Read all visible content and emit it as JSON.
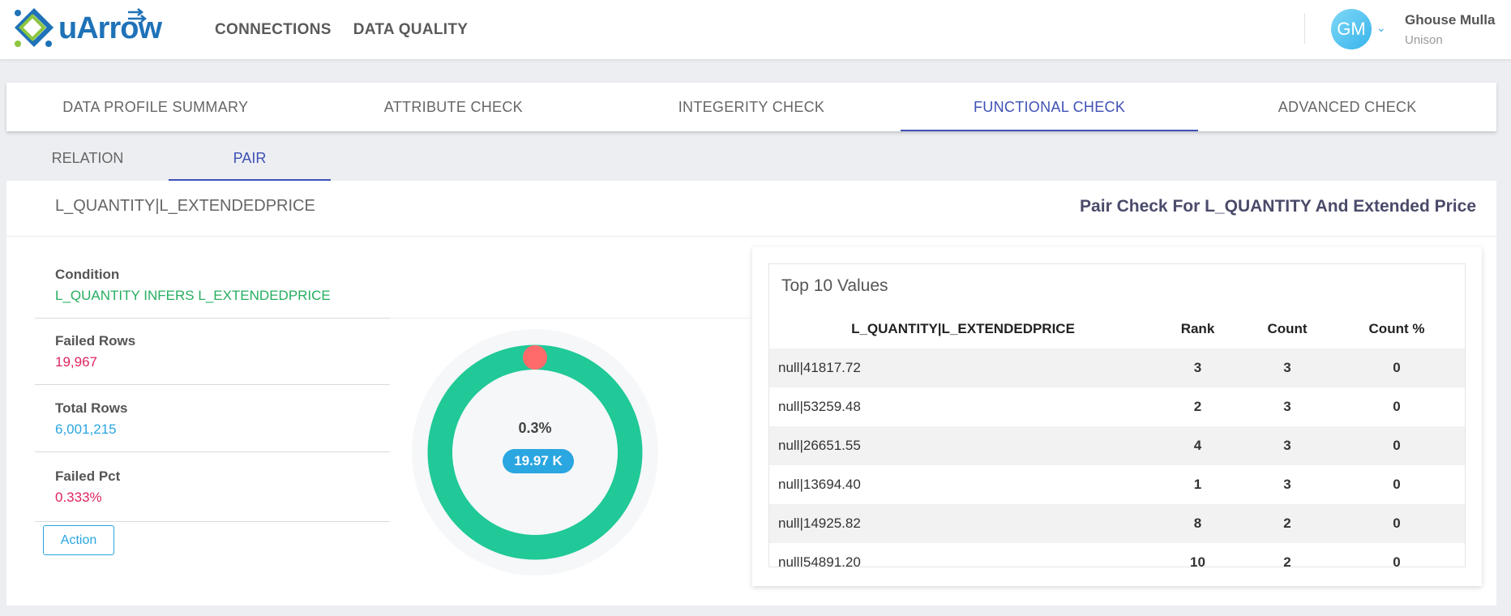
{
  "app": {
    "logo_text": "uArrow",
    "nav": [
      "CONNECTIONS",
      "DATA QUALITY"
    ],
    "user": {
      "initials": "GM",
      "name": "Ghouse Mulla",
      "org": "Unison"
    }
  },
  "tabs": [
    {
      "label": "DATA PROFILE SUMMARY",
      "active": false
    },
    {
      "label": "ATTRIBUTE CHECK",
      "active": false
    },
    {
      "label": "INTEGERITY CHECK",
      "active": false
    },
    {
      "label": "FUNCTIONAL CHECK",
      "active": true
    },
    {
      "label": "ADVANCED CHECK",
      "active": false
    }
  ],
  "subtabs": [
    {
      "label": "RELATION",
      "active": false
    },
    {
      "label": "PAIR",
      "active": true
    }
  ],
  "panel": {
    "pair_key": "L_QUANTITY|L_EXTENDEDPRICE",
    "title": "Pair Check For L_QUANTITY And Extended Price",
    "condition": {
      "label": "Condition",
      "value": "L_QUANTITY INFERS L_EXTENDEDPRICE"
    },
    "failed_rows": {
      "label": "Failed Rows",
      "value": "19,967"
    },
    "total_rows": {
      "label": "Total Rows",
      "value": "6,001,215"
    },
    "failed_pct": {
      "label": "Failed Pct",
      "value": "0.333%"
    },
    "action_label": "Action",
    "donut": {
      "center_pct": "0.3%",
      "badge": "19.97 K",
      "failed_fraction": 0.00333,
      "ok_color": "#20c997",
      "fail_color": "#ff6b6b"
    }
  },
  "top_values": {
    "title": "Top 10 Values",
    "columns": [
      "L_QUANTITY|L_EXTENDEDPRICE",
      "Rank",
      "Count",
      "Count %"
    ],
    "rows": [
      [
        "null|41817.72",
        "3",
        "3",
        "0"
      ],
      [
        "null|53259.48",
        "2",
        "3",
        "0"
      ],
      [
        "null|26651.55",
        "4",
        "3",
        "0"
      ],
      [
        "null|13694.40",
        "1",
        "3",
        "0"
      ],
      [
        "null|14925.82",
        "8",
        "2",
        "0"
      ],
      [
        "null|54891.20",
        "10",
        "2",
        "0"
      ]
    ]
  }
}
